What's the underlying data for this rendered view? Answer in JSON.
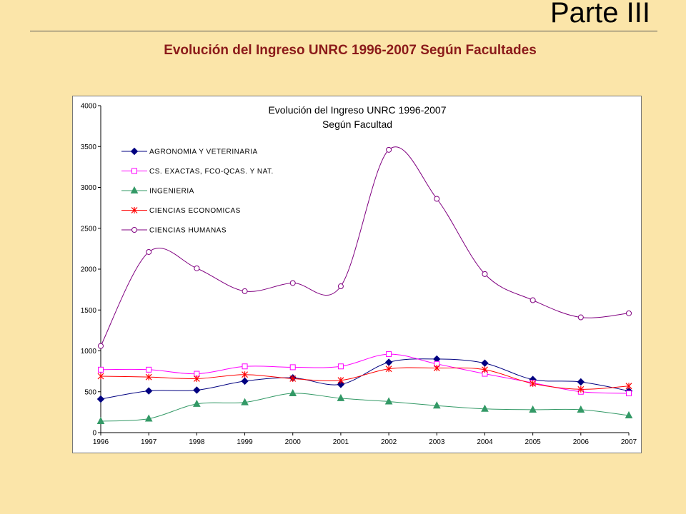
{
  "slide": {
    "heading": "Parte III",
    "subtitle": "Evolución del Ingreso  UNRC 1996-2007 Según Facultades"
  },
  "chart_data": {
    "type": "line",
    "title": "Evolución del Ingreso UNRC 1996-2007",
    "subtitle": "Según Facultad",
    "xlabel": "",
    "ylabel": "",
    "ylim": [
      0,
      4000
    ],
    "yticks": [
      0,
      500,
      1000,
      1500,
      2000,
      2500,
      3000,
      3500,
      4000
    ],
    "categories": [
      "1996",
      "1997",
      "1998",
      "1999",
      "2000",
      "2001",
      "2002",
      "2003",
      "2004",
      "2005",
      "2006",
      "2007"
    ],
    "grid": false,
    "legend_position": "top-left",
    "series": [
      {
        "name": "AGRONOMIA Y VETERINARIA",
        "color": "#000080",
        "marker": "diamond",
        "values": [
          410,
          510,
          520,
          630,
          670,
          590,
          860,
          900,
          850,
          650,
          620,
          510
        ]
      },
      {
        "name": "CS. EXACTAS, FCO-QCAS. Y NAT.",
        "color": "#FF00FF",
        "marker": "square",
        "values": [
          770,
          770,
          720,
          810,
          800,
          810,
          960,
          840,
          720,
          610,
          500,
          480
        ]
      },
      {
        "name": "INGENIERIA",
        "color": "#339966",
        "marker": "triangle",
        "values": [
          140,
          170,
          350,
          370,
          480,
          420,
          380,
          330,
          290,
          280,
          280,
          210
        ]
      },
      {
        "name": "CIENCIAS ECONOMICAS",
        "color": "#FF0000",
        "marker": "star",
        "values": [
          690,
          680,
          660,
          710,
          660,
          640,
          780,
          790,
          770,
          600,
          530,
          570
        ]
      },
      {
        "name": "CIENCIAS HUMANAS",
        "color": "#800080",
        "marker": "circle",
        "values": [
          1060,
          2210,
          2010,
          1730,
          1830,
          1790,
          3460,
          2860,
          1940,
          1620,
          1410,
          1460
        ]
      }
    ]
  }
}
